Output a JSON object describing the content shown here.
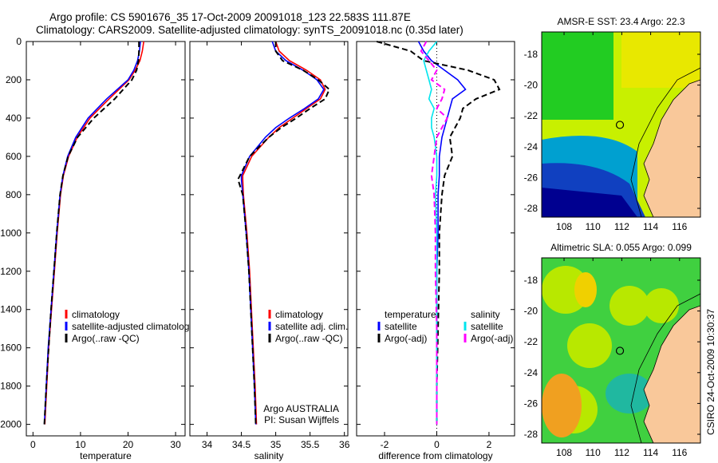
{
  "title_line1": "Argo profile: CS 5901676_35 17-Oct-2009 20091018_123 22.583S 111.87E",
  "title_line2": "Climatology: CARS2009. Satellite-adjusted climatology: synTS_20091018.nc (0.35d later)",
  "side_label": "CSIRO 24-Oct-2009 10:30:37",
  "colors": {
    "climatology": "#ff0000",
    "satellite": "#0000ff",
    "argo": "#000000",
    "sal_satellite": "#00e5ee",
    "sal_argo": "#ff00ff",
    "land": "#f9c89a"
  },
  "chart_data": [
    {
      "type": "line",
      "title": "",
      "xlabel": "temperature",
      "ylabel": "",
      "xlim": [
        -1.4,
        32
      ],
      "ylim": [
        2060,
        0
      ],
      "xticks": [
        0,
        10,
        20,
        30
      ],
      "yticks": [
        0,
        200,
        400,
        600,
        800,
        1000,
        1200,
        1400,
        1600,
        1800,
        2000
      ],
      "legend": [
        "climatology",
        "satellite-adjusted climatology",
        "Argo(..raw -QC)"
      ],
      "depth": [
        0,
        50,
        100,
        150,
        200,
        300,
        400,
        500,
        600,
        700,
        800,
        1000,
        1200,
        1400,
        1600,
        1800,
        2000
      ],
      "series": [
        {
          "name": "climatology",
          "color": "#ff0000",
          "values": [
            23.3,
            23.0,
            22.5,
            21.5,
            20.2,
            16.0,
            12.0,
            9.3,
            7.5,
            6.4,
            5.8,
            5.1,
            4.5,
            3.9,
            3.3,
            2.9,
            2.5
          ]
        },
        {
          "name": "satellite-adjusted climatology",
          "color": "#0000ff",
          "values": [
            22.6,
            22.4,
            22.0,
            21.2,
            20.0,
            15.5,
            11.6,
            9.0,
            7.3,
            6.3,
            5.7,
            5.0,
            4.4,
            3.8,
            3.2,
            2.8,
            2.4
          ]
        },
        {
          "name": "Argo(..raw -QC)",
          "color": "#000000",
          "dash": true,
          "values": [
            22.3,
            22.3,
            22.2,
            21.8,
            20.8,
            17.2,
            12.8,
            9.4,
            7.4,
            6.3,
            5.7,
            5.0,
            4.4,
            3.8,
            3.3,
            2.8,
            2.4
          ]
        }
      ]
    },
    {
      "type": "line",
      "xlabel": "salinity",
      "xlim": [
        33.75,
        36.05
      ],
      "ylim": [
        2060,
        0
      ],
      "xticks": [
        34,
        34.5,
        35,
        35.5,
        36
      ],
      "legend": [
        "climatology",
        "satellite adj. clim.",
        "Argo(..raw -QC)"
      ],
      "annotation": [
        "Argo AUSTRALIA",
        "PI: Susan Wijffels"
      ],
      "depth": [
        0,
        50,
        100,
        150,
        200,
        250,
        300,
        350,
        400,
        450,
        500,
        600,
        700,
        720,
        800,
        1000,
        1200,
        1500,
        1800,
        2000
      ],
      "series": [
        {
          "name": "climatology",
          "color": "#ff0000",
          "values": [
            35.0,
            35.05,
            35.2,
            35.45,
            35.65,
            35.72,
            35.65,
            35.45,
            35.25,
            35.05,
            34.9,
            34.65,
            34.52,
            34.52,
            34.53,
            34.58,
            34.62,
            34.66,
            34.7,
            34.72
          ]
        },
        {
          "name": "satellite adj. clim.",
          "color": "#0000ff",
          "values": [
            34.95,
            35.0,
            35.15,
            35.4,
            35.6,
            35.7,
            35.62,
            35.42,
            35.2,
            35.0,
            34.85,
            34.62,
            34.5,
            34.5,
            34.52,
            34.57,
            34.61,
            34.65,
            34.69,
            34.71
          ]
        },
        {
          "name": "Argo(..raw -QC)",
          "color": "#000000",
          "dash": true,
          "values": [
            35.0,
            35.0,
            35.1,
            35.4,
            35.62,
            35.78,
            35.72,
            35.5,
            35.3,
            35.08,
            34.9,
            34.62,
            34.48,
            34.45,
            34.52,
            34.57,
            34.61,
            34.65,
            34.69,
            34.71
          ]
        }
      ]
    },
    {
      "type": "line",
      "xlabel": "difference from climatology",
      "xlim": [
        -3.07,
        2.98
      ],
      "ylim": [
        2060,
        0
      ],
      "xticks": [
        -2,
        0,
        2
      ],
      "legend_headers": [
        "temperature",
        "salinity"
      ],
      "legend": [
        "satellite",
        "Argo(-adj)",
        "satellite",
        "Argo(-adj)"
      ],
      "depth": [
        0,
        50,
        100,
        150,
        200,
        250,
        300,
        350,
        400,
        450,
        500,
        600,
        700,
        800,
        1000,
        1200,
        1500,
        1800,
        2000
      ],
      "series": [
        {
          "name": "temperature satellite",
          "color": "#0000ff",
          "values": [
            -0.7,
            -0.5,
            -0.2,
            0.3,
            0.8,
            1.1,
            0.6,
            0.5,
            0.4,
            0.3,
            0.2,
            0.1,
            0.1,
            0.05,
            0.05,
            0.0,
            0.0,
            0.0,
            0.0
          ]
        },
        {
          "name": "temperature Argo(-adj)",
          "color": "#000000",
          "dash": true,
          "values": [
            -2.3,
            -1.0,
            -0.5,
            1.2,
            2.2,
            2.4,
            1.5,
            1.0,
            0.9,
            0.7,
            0.5,
            0.6,
            0.3,
            0.2,
            0.1,
            0.1,
            0.05,
            0.0,
            0.0
          ]
        },
        {
          "name": "salinity satellite",
          "color": "#00e5ee",
          "values": [
            0.0,
            -0.3,
            -0.5,
            -0.4,
            -0.3,
            -0.2,
            -0.3,
            -0.1,
            -0.2,
            -0.2,
            -0.1,
            0.0,
            0.0,
            -0.05,
            0.0,
            0.0,
            0.0,
            0.0,
            0.0
          ]
        },
        {
          "name": "salinity Argo(-adj)",
          "color": "#ff00ff",
          "dash": true,
          "values": [
            -0.4,
            -0.6,
            -0.3,
            0.0,
            -0.2,
            0.3,
            0.2,
            0.0,
            0.4,
            0.2,
            0.0,
            -0.1,
            -0.2,
            -0.1,
            -0.05,
            -0.05,
            0.0,
            0.0,
            0.0
          ]
        }
      ]
    },
    {
      "type": "heatmap",
      "title": "AMSR-E SST: 23.4  Argo: 22.3",
      "xlim": [
        106.45,
        117.45
      ],
      "ylim": [
        -28.57,
        -16.55
      ],
      "xticks": [
        108,
        110,
        112,
        114,
        116
      ],
      "yticks": [
        -18,
        -20,
        -22,
        -24,
        -26,
        -28
      ],
      "marker": {
        "lon": 111.87,
        "lat": -22.583
      }
    },
    {
      "type": "heatmap",
      "title": "Altimetric SLA: 0.055  Argo: 0.099",
      "xlim": [
        106.45,
        117.45
      ],
      "ylim": [
        -28.57,
        -16.55
      ],
      "xticks": [
        108,
        110,
        112,
        114,
        116
      ],
      "yticks": [
        -18,
        -20,
        -22,
        -24,
        -26,
        -28
      ],
      "marker": {
        "lon": 111.87,
        "lat": -22.583
      }
    }
  ]
}
